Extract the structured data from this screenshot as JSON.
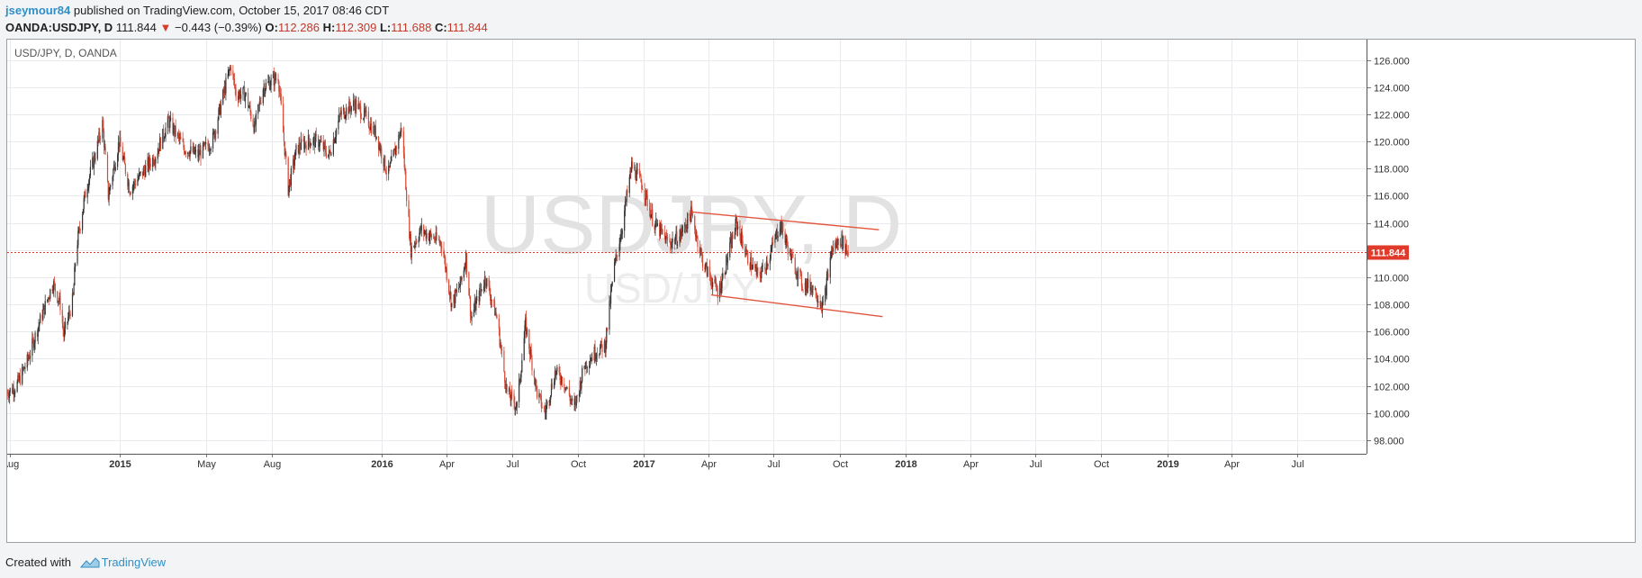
{
  "header": {
    "author": "jseymour84",
    "published_text": " published on TradingView.com, October 15, 2017 08:46 CDT",
    "symbol": "OANDA:USDJPY, D",
    "last": "111.844",
    "change_arrow": "▼",
    "change": "−0.443 (−0.39%)",
    "o_label": "O:",
    "o_value": "112.286",
    "h_label": "H:",
    "h_value": "112.309",
    "l_label": "L:",
    "l_value": "111.688",
    "c_label": "C:",
    "c_value": "111.844"
  },
  "chart_legend": "USD/JPY, D, OANDA",
  "watermark": {
    "line1": "USDJPY, D",
    "line2": "USD/JPY"
  },
  "footer": {
    "created_with": "Created with",
    "brand": "TradingView"
  },
  "colors": {
    "up": "#333333",
    "down": "#d64a36",
    "trendline": "#e2553f",
    "last_price": "#e03b2a",
    "grid": "#e8eaed"
  },
  "chart_data": {
    "type": "candlestick",
    "title": "USD/JPY, D, OANDA",
    "ylim": [
      97,
      127.5
    ],
    "y_ticks": [
      98,
      100,
      102,
      104,
      106,
      108,
      110,
      112,
      114,
      116,
      118,
      120,
      122,
      124,
      126
    ],
    "y_tick_labels": [
      "98.000",
      "100.000",
      "102.000",
      "104.000",
      "106.000",
      "108.000",
      "110.000",
      "112.000",
      "114.000",
      "116.000",
      "118.000",
      "120.000",
      "122.000",
      "124.000",
      "126.000"
    ],
    "x_range": [
      "2014-07-28",
      "2019-10-06"
    ],
    "x_ticks": [
      {
        "date": "2014-08-01",
        "label": "Aug"
      },
      {
        "date": "2015-01-01",
        "label": "2015"
      },
      {
        "date": "2015-05-01",
        "label": "May"
      },
      {
        "date": "2015-08-01",
        "label": "Aug"
      },
      {
        "date": "2016-01-01",
        "label": "2016"
      },
      {
        "date": "2016-04-01",
        "label": "Apr"
      },
      {
        "date": "2016-07-01",
        "label": "Jul"
      },
      {
        "date": "2016-10-01",
        "label": "Oct"
      },
      {
        "date": "2017-01-01",
        "label": "2017"
      },
      {
        "date": "2017-04-01",
        "label": "Apr"
      },
      {
        "date": "2017-07-01",
        "label": "Jul"
      },
      {
        "date": "2017-10-01",
        "label": "Oct"
      },
      {
        "date": "2018-01-01",
        "label": "2018"
      },
      {
        "date": "2018-04-01",
        "label": "Apr"
      },
      {
        "date": "2018-07-01",
        "label": "Jul"
      },
      {
        "date": "2018-10-01",
        "label": "Oct"
      },
      {
        "date": "2019-01-01",
        "label": "2019"
      },
      {
        "date": "2019-04-01",
        "label": "Apr"
      },
      {
        "date": "2019-07-01",
        "label": "Jul"
      }
    ],
    "last_price": 111.844,
    "last_price_label": "111.844",
    "series": [
      {
        "close_path": [
          [
            "2014-07-28",
            101.5
          ],
          [
            "2014-08-10",
            102.0
          ],
          [
            "2014-08-25",
            103.8
          ],
          [
            "2014-09-10",
            106.5
          ],
          [
            "2014-09-30",
            109.6
          ],
          [
            "2014-10-10",
            108.0
          ],
          [
            "2014-10-15",
            105.7
          ],
          [
            "2014-10-28",
            108.5
          ],
          [
            "2014-11-01",
            112.0
          ],
          [
            "2014-11-15",
            116.5
          ],
          [
            "2014-11-30",
            119.5
          ],
          [
            "2014-12-08",
            121.3
          ],
          [
            "2014-12-16",
            116.0
          ],
          [
            "2014-12-31",
            120.0
          ],
          [
            "2015-01-15",
            116.5
          ],
          [
            "2015-01-30",
            117.5
          ],
          [
            "2015-02-20",
            119.0
          ],
          [
            "2015-03-10",
            121.5
          ],
          [
            "2015-04-01",
            119.5
          ],
          [
            "2015-04-20",
            119.0
          ],
          [
            "2015-05-10",
            120.0
          ],
          [
            "2015-05-28",
            124.0
          ],
          [
            "2015-06-05",
            125.6
          ],
          [
            "2015-06-12",
            123.5
          ],
          [
            "2015-06-25",
            123.5
          ],
          [
            "2015-07-08",
            121.0
          ],
          [
            "2015-07-20",
            124.0
          ],
          [
            "2015-08-10",
            124.8
          ],
          [
            "2015-08-24",
            116.5
          ],
          [
            "2015-09-05",
            119.5
          ],
          [
            "2015-09-20",
            120.0
          ],
          [
            "2015-10-05",
            120.0
          ],
          [
            "2015-10-20",
            119.0
          ],
          [
            "2015-11-05",
            122.0
          ],
          [
            "2015-11-25",
            122.8
          ],
          [
            "2015-12-10",
            121.8
          ],
          [
            "2015-12-25",
            120.5
          ],
          [
            "2016-01-10",
            117.5
          ],
          [
            "2016-01-29",
            121.0
          ],
          [
            "2016-02-11",
            112.0
          ],
          [
            "2016-02-25",
            113.5
          ],
          [
            "2016-03-10",
            113.0
          ],
          [
            "2016-03-25",
            112.5
          ],
          [
            "2016-04-08",
            108.0
          ],
          [
            "2016-04-20",
            109.5
          ],
          [
            "2016-04-28",
            111.5
          ],
          [
            "2016-05-05",
            107.0
          ],
          [
            "2016-05-25",
            110.0
          ],
          [
            "2016-06-10",
            107.0
          ],
          [
            "2016-06-24",
            101.5
          ],
          [
            "2016-07-08",
            100.5
          ],
          [
            "2016-07-20",
            106.5
          ],
          [
            "2016-08-05",
            101.5
          ],
          [
            "2016-08-16",
            100.0
          ],
          [
            "2016-08-30",
            103.0
          ],
          [
            "2016-09-10",
            102.5
          ],
          [
            "2016-09-26",
            100.3
          ],
          [
            "2016-10-10",
            103.5
          ],
          [
            "2016-10-25",
            104.5
          ],
          [
            "2016-11-08",
            105.0
          ],
          [
            "2016-11-20",
            110.5
          ],
          [
            "2016-12-01",
            113.5
          ],
          [
            "2016-12-15",
            118.2
          ],
          [
            "2016-12-30",
            116.8
          ],
          [
            "2017-01-15",
            114.0
          ],
          [
            "2017-02-05",
            112.5
          ],
          [
            "2017-02-20",
            113.0
          ],
          [
            "2017-03-08",
            114.7
          ],
          [
            "2017-03-25",
            111.0
          ],
          [
            "2017-04-15",
            108.8
          ],
          [
            "2017-04-28",
            111.5
          ],
          [
            "2017-05-10",
            114.0
          ],
          [
            "2017-05-25",
            111.5
          ],
          [
            "2017-06-10",
            110.0
          ],
          [
            "2017-06-25",
            111.5
          ],
          [
            "2017-07-10",
            114.0
          ],
          [
            "2017-07-25",
            111.5
          ],
          [
            "2017-08-10",
            109.5
          ],
          [
            "2017-08-25",
            109.3
          ],
          [
            "2017-09-08",
            107.8
          ],
          [
            "2017-09-20",
            112.0
          ],
          [
            "2017-10-03",
            112.8
          ],
          [
            "2017-10-13",
            111.844
          ]
        ]
      }
    ],
    "annotations": [
      {
        "type": "trendline",
        "start": [
          "2017-03-10",
          114.8
        ],
        "end": [
          "2017-11-25",
          113.5
        ]
      },
      {
        "type": "trendline",
        "start": [
          "2017-04-05",
          108.7
        ],
        "end": [
          "2017-11-30",
          107.1
        ]
      }
    ]
  }
}
